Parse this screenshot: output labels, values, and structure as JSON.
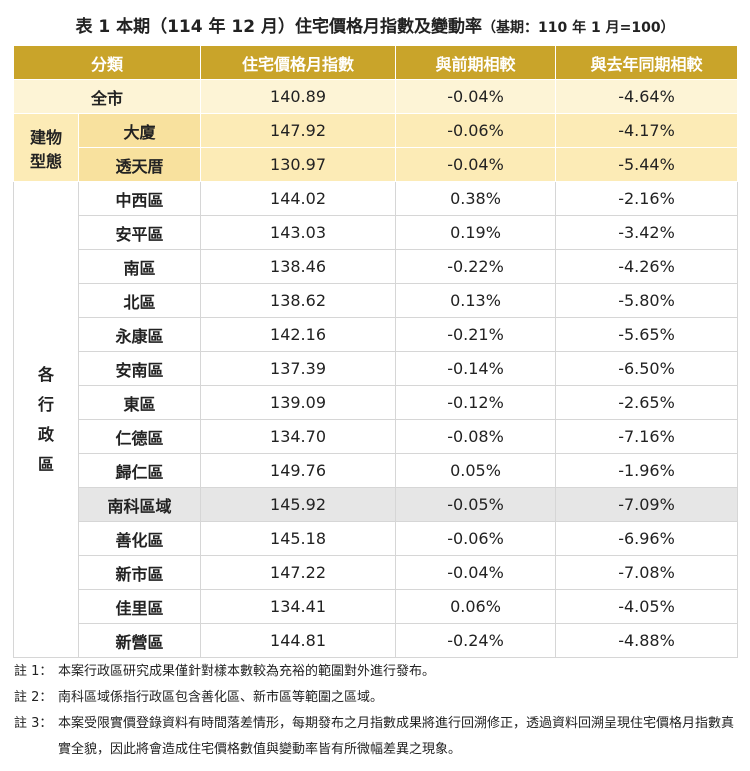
{
  "title": "表 1 本期（114 年 12 月）住宅價格月指數及變動率",
  "title_note": "（基期：110 年 1 月=100）",
  "header": {
    "category": "分類",
    "columns": [
      "住宅價格月指數",
      "與前期相較",
      "與去年同期相較"
    ]
  },
  "total": {
    "name": "全市",
    "values": [
      "140.89",
      "-0.04%",
      "-4.64%"
    ]
  },
  "groups": [
    {
      "label": [
        "建物",
        "型態"
      ],
      "style": "type",
      "rows": [
        {
          "name": "大廈",
          "values": [
            "147.92",
            "-0.06%",
            "-4.17%"
          ]
        },
        {
          "name": "透天厝",
          "values": [
            "130.97",
            "-0.04%",
            "-5.44%"
          ]
        }
      ]
    },
    {
      "label": [
        "各",
        "行",
        "政",
        "區"
      ],
      "style": "district",
      "rows": [
        {
          "name": "中西區",
          "values": [
            "144.02",
            "0.38%",
            "-2.16%"
          ]
        },
        {
          "name": "安平區",
          "values": [
            "143.03",
            "0.19%",
            "-3.42%"
          ]
        },
        {
          "name": "南區",
          "values": [
            "138.46",
            "-0.22%",
            "-4.26%"
          ]
        },
        {
          "name": "北區",
          "values": [
            "138.62",
            "0.13%",
            "-5.80%"
          ]
        },
        {
          "name": "永康區",
          "values": [
            "142.16",
            "-0.21%",
            "-5.65%"
          ]
        },
        {
          "name": "安南區",
          "values": [
            "137.39",
            "-0.14%",
            "-6.50%"
          ]
        },
        {
          "name": "東區",
          "values": [
            "139.09",
            "-0.12%",
            "-2.65%"
          ]
        },
        {
          "name": "仁德區",
          "values": [
            "134.70",
            "-0.08%",
            "-7.16%"
          ]
        },
        {
          "name": "歸仁區",
          "values": [
            "149.76",
            "0.05%",
            "-1.96%"
          ]
        },
        {
          "name": "南科區域",
          "values": [
            "145.92",
            "-0.05%",
            "-7.09%"
          ],
          "highlight": true
        },
        {
          "name": "善化區",
          "values": [
            "145.18",
            "-0.06%",
            "-6.96%"
          ]
        },
        {
          "name": "新市區",
          "values": [
            "147.22",
            "-0.04%",
            "-7.08%"
          ]
        },
        {
          "name": "佳里區",
          "values": [
            "134.41",
            "0.06%",
            "-4.05%"
          ]
        },
        {
          "name": "新營區",
          "values": [
            "144.81",
            "-0.24%",
            "-4.88%"
          ]
        }
      ]
    }
  ],
  "notes": [
    {
      "label": "註 1：",
      "text": "本案行政區研究成果僅針對樣本數較為充裕的範圍對外進行發布。"
    },
    {
      "label": "註 2：",
      "text": "南科區域係指行政區包含善化區、新市區等範圍之區域。"
    },
    {
      "label": "註 3：",
      "text": "本案受限實價登錄資料有時間落差情形，每期發布之月指數成果將進行回溯修正，透過資料回溯呈現住宅價格月指數真實全貌，因此將會造成住宅價格數值與變動率皆有所微幅差異之現象。"
    }
  ]
}
